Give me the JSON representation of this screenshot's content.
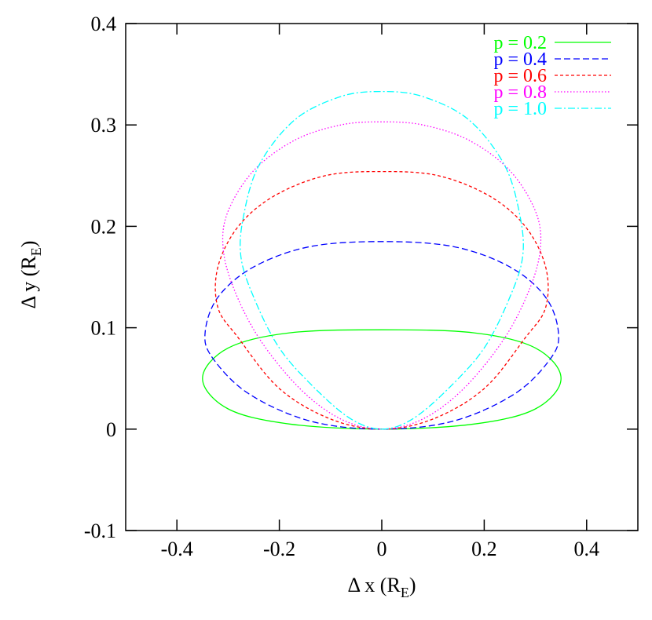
{
  "chart_data": {
    "type": "line",
    "title": "",
    "xlabel": {
      "main": "Δ x (R",
      "sub": "E",
      "end": ")"
    },
    "ylabel": {
      "main": "Δ y (R",
      "sub": "E",
      "end": ")"
    },
    "xlim": [
      -0.5,
      0.5
    ],
    "ylim": [
      -0.1,
      0.4
    ],
    "x_ticks": [
      -0.4,
      -0.2,
      0,
      0.2,
      0.4
    ],
    "x_tick_labels": [
      "-0.4",
      "-0.2",
      "0",
      "0.2",
      "0.4"
    ],
    "y_ticks": [
      -0.1,
      0,
      0.1,
      0.2,
      0.3,
      0.4
    ],
    "y_tick_labels": [
      "-0.1",
      "0",
      "0.1",
      "0.2",
      "0.3",
      "0.4"
    ],
    "grid": false,
    "legend_position": "top-right",
    "series": [
      {
        "name": "p = 0.2",
        "color": "#00ff00",
        "dash": "solid",
        "points": [
          [
            0,
            0
          ],
          [
            0.18,
            0.005
          ],
          [
            0.3,
            0.02
          ],
          [
            0.35,
            0.05
          ],
          [
            0.3,
            0.08
          ],
          [
            0.18,
            0.095
          ],
          [
            0,
            0.098
          ],
          [
            -0.18,
            0.095
          ],
          [
            -0.3,
            0.08
          ],
          [
            -0.35,
            0.05
          ],
          [
            -0.3,
            0.02
          ],
          [
            -0.18,
            0.005
          ],
          [
            0,
            0
          ]
        ]
      },
      {
        "name": "p = 0.4",
        "color": "#0000ff",
        "dash": "long-dash",
        "points": [
          [
            0,
            0
          ],
          [
            0.14,
            0.008
          ],
          [
            0.26,
            0.035
          ],
          [
            0.33,
            0.07
          ],
          [
            0.345,
            0.095
          ],
          [
            0.32,
            0.13
          ],
          [
            0.25,
            0.16
          ],
          [
            0.14,
            0.18
          ],
          [
            0,
            0.185
          ],
          [
            -0.14,
            0.18
          ],
          [
            -0.25,
            0.16
          ],
          [
            -0.32,
            0.13
          ],
          [
            -0.345,
            0.095
          ],
          [
            -0.33,
            0.07
          ],
          [
            -0.26,
            0.035
          ],
          [
            -0.14,
            0.008
          ],
          [
            0,
            0
          ]
        ]
      },
      {
        "name": "p = 0.6",
        "color": "#ff0000",
        "dash": "short-dash",
        "points": [
          [
            0,
            0
          ],
          [
            0.1,
            0.01
          ],
          [
            0.2,
            0.04
          ],
          [
            0.28,
            0.09
          ],
          [
            0.32,
            0.12
          ],
          [
            0.32,
            0.16
          ],
          [
            0.28,
            0.2
          ],
          [
            0.21,
            0.23
          ],
          [
            0.11,
            0.25
          ],
          [
            0,
            0.254
          ],
          [
            -0.11,
            0.25
          ],
          [
            -0.21,
            0.23
          ],
          [
            -0.28,
            0.2
          ],
          [
            -0.32,
            0.16
          ],
          [
            -0.32,
            0.12
          ],
          [
            -0.28,
            0.09
          ],
          [
            -0.2,
            0.04
          ],
          [
            -0.1,
            0.01
          ],
          [
            0,
            0
          ]
        ]
      },
      {
        "name": "p = 0.8",
        "color": "#ff00ff",
        "dash": "dotted",
        "points": [
          [
            0,
            0
          ],
          [
            0.08,
            0.01
          ],
          [
            0.16,
            0.04
          ],
          [
            0.24,
            0.09
          ],
          [
            0.29,
            0.14
          ],
          [
            0.31,
            0.18
          ],
          [
            0.3,
            0.215
          ],
          [
            0.25,
            0.255
          ],
          [
            0.17,
            0.285
          ],
          [
            0.08,
            0.3
          ],
          [
            0,
            0.303
          ],
          [
            -0.08,
            0.3
          ],
          [
            -0.17,
            0.285
          ],
          [
            -0.25,
            0.255
          ],
          [
            -0.3,
            0.215
          ],
          [
            -0.31,
            0.18
          ],
          [
            -0.29,
            0.14
          ],
          [
            -0.24,
            0.09
          ],
          [
            -0.16,
            0.04
          ],
          [
            -0.08,
            0.01
          ],
          [
            0,
            0
          ]
        ]
      },
      {
        "name": "p = 1.0",
        "color": "#00ffff",
        "dash": "dash-dot",
        "points": [
          [
            0,
            0
          ],
          [
            0.06,
            0.01
          ],
          [
            0.13,
            0.04
          ],
          [
            0.2,
            0.08
          ],
          [
            0.25,
            0.13
          ],
          [
            0.275,
            0.17
          ],
          [
            0.27,
            0.21
          ],
          [
            0.24,
            0.26
          ],
          [
            0.17,
            0.305
          ],
          [
            0.08,
            0.328
          ],
          [
            0,
            0.333
          ],
          [
            -0.08,
            0.328
          ],
          [
            -0.17,
            0.305
          ],
          [
            -0.24,
            0.26
          ],
          [
            -0.27,
            0.21
          ],
          [
            -0.275,
            0.17
          ],
          [
            -0.25,
            0.13
          ],
          [
            -0.2,
            0.08
          ],
          [
            -0.13,
            0.04
          ],
          [
            -0.06,
            0.01
          ],
          [
            0,
            0
          ]
        ]
      }
    ]
  }
}
